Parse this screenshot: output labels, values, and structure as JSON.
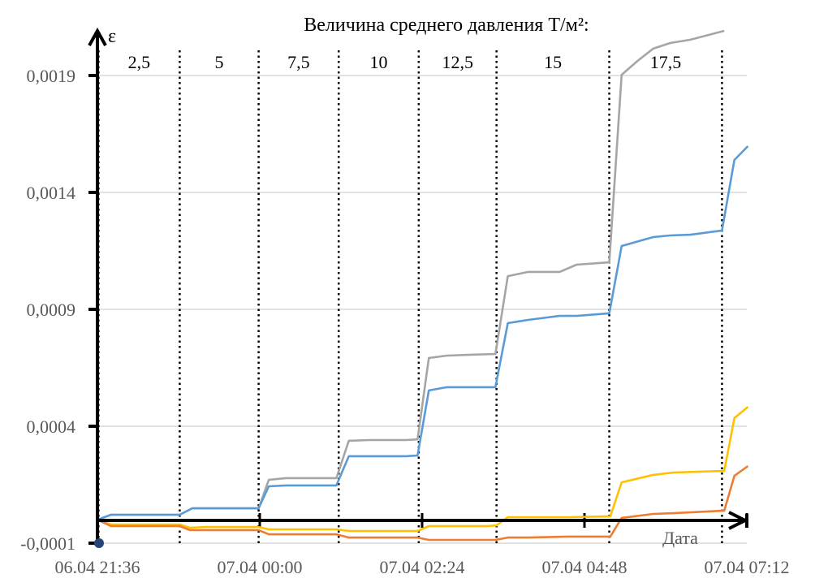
{
  "chart_data": {
    "type": "line",
    "title": "Величина среднего давления Т/м²:",
    "ylabel": "ε",
    "xlabel": "Дата",
    "ylim": [
      -0.0001,
      0.0021
    ],
    "yticks": [
      "-0,0001",
      "0,0004",
      "0,0009",
      "0,0014",
      "0,0019"
    ],
    "ytick_values": [
      -0.0001,
      0.0004,
      0.0009,
      0.0014,
      0.0019
    ],
    "xticks": [
      "06.04 21:36",
      "07.04 00:00",
      "07.04 02:24",
      "07.04 04:48",
      "07.04 07:12"
    ],
    "grid": true,
    "pressure_stages": [
      {
        "label": "2,5",
        "start": "06.04 21:37",
        "end": "06.04 22:49"
      },
      {
        "label": "5",
        "start": "06.04 22:49",
        "end": "06.04 23:59"
      },
      {
        "label": "7,5",
        "start": "06.04 23:59",
        "end": "07.04 01:10"
      },
      {
        "label": "10",
        "start": "07.04 01:10",
        "end": "07.04 02:21"
      },
      {
        "label": "12,5",
        "start": "07.04 02:21",
        "end": "07.04 03:30"
      },
      {
        "label": "15",
        "start": "07.04 03:30",
        "end": "07.04 05:10"
      },
      {
        "label": "17,5",
        "start": "07.04 05:10",
        "end": "07.04 06:50"
      }
    ],
    "series": [
      {
        "color": "#a5a5a5",
        "points": [
          [
            "06.04 21:36",
            0
          ],
          [
            "06.04 21:48",
            2.15e-05
          ],
          [
            "06.04 22:49",
            2.15e-05
          ],
          [
            "06.04 23:00",
            4.9e-05
          ],
          [
            "06.04 23:59",
            4.9e-05
          ],
          [
            "07.04 00:08",
            0.000171
          ],
          [
            "07.04 00:23",
            0.000178
          ],
          [
            "07.04 01:08",
            0.000178
          ],
          [
            "07.04 01:19",
            0.000338
          ],
          [
            "07.04 01:37",
            0.000341
          ],
          [
            "07.04 02:10",
            0.000341
          ],
          [
            "07.04 02:20",
            0.000344
          ],
          [
            "07.04 02:30",
            0.000692
          ],
          [
            "07.04 02:46",
            0.000702
          ],
          [
            "07.04 03:07",
            0.000706
          ],
          [
            "07.04 03:29",
            0.000709
          ],
          [
            "07.04 03:40",
            0.001042
          ],
          [
            "07.04 03:58",
            0.00106
          ],
          [
            "07.04 04:26",
            0.00106
          ],
          [
            "07.04 04:41",
            0.001091
          ],
          [
            "07.04 05:10",
            0.001101
          ],
          [
            "07.04 05:21",
            0.001903
          ],
          [
            "07.04 05:35",
            0.001962
          ],
          [
            "07.04 05:49",
            0.002015
          ],
          [
            "07.04 06:04",
            0.002039
          ],
          [
            "07.04 06:22",
            0.002053
          ],
          [
            "07.04 06:52",
            0.002091
          ]
        ]
      },
      {
        "color": "#5b9bd5",
        "points": [
          [
            "06.04 21:36",
            0
          ],
          [
            "06.04 21:48",
            2.15e-05
          ],
          [
            "06.04 22:49",
            2.15e-05
          ],
          [
            "06.04 23:00",
            4.9e-05
          ],
          [
            "06.04 23:59",
            4.9e-05
          ],
          [
            "07.04 00:08",
            0.000143
          ],
          [
            "07.04 00:23",
            0.000147
          ],
          [
            "07.04 01:08",
            0.000147
          ],
          [
            "07.04 01:19",
            0.000272
          ],
          [
            "07.04 02:10",
            0.000272
          ],
          [
            "07.04 02:20",
            0.000275
          ],
          [
            "07.04 02:30",
            0.000553
          ],
          [
            "07.04 02:46",
            0.000567
          ],
          [
            "07.04 03:29",
            0.000567
          ],
          [
            "07.04 03:40",
            0.000841
          ],
          [
            "07.04 03:58",
            0.000855
          ],
          [
            "07.04 04:26",
            0.000872
          ],
          [
            "07.04 04:41",
            0.000872
          ],
          [
            "07.04 05:10",
            0.000883
          ],
          [
            "07.04 05:21",
            0.001171
          ],
          [
            "07.04 05:49",
            0.001209
          ],
          [
            "07.04 06:04",
            0.001216
          ],
          [
            "07.04 06:22",
            0.001219
          ],
          [
            "07.04 06:50",
            0.001237
          ],
          [
            "07.04 07:01",
            0.001539
          ],
          [
            "07.04 07:13",
            0.001598
          ]
        ]
      },
      {
        "color": "#ffc000",
        "points": [
          [
            "06.04 21:36",
            0
          ],
          [
            "06.04 21:48",
            -2e-05
          ],
          [
            "06.04 22:49",
            -2e-05
          ],
          [
            "06.04 22:58",
            -3.4e-05
          ],
          [
            "06.04 23:12",
            -3.1e-05
          ],
          [
            "06.04 23:59",
            -3.1e-05
          ],
          [
            "07.04 00:08",
            -4.1e-05
          ],
          [
            "07.04 01:08",
            -4.1e-05
          ],
          [
            "07.04 01:19",
            -4.8e-05
          ],
          [
            "07.04 02:20",
            -4.8e-05
          ],
          [
            "07.04 02:30",
            -2.7e-05
          ],
          [
            "07.04 03:22",
            -2.7e-05
          ],
          [
            "07.04 03:30",
            -2.4e-05
          ],
          [
            "07.04 03:40",
            1.1e-05
          ],
          [
            "07.04 04:34",
            1.1e-05
          ],
          [
            "07.04 05:11",
            1.5e-05
          ],
          [
            "07.04 05:21",
            0.00016
          ],
          [
            "07.04 05:49",
            0.000192
          ],
          [
            "07.04 06:07",
            0.000202
          ],
          [
            "07.04 06:52",
            0.000209
          ],
          [
            "07.04 07:01",
            0.000435
          ],
          [
            "07.04 07:13",
            0.000483
          ]
        ]
      },
      {
        "color": "#ed7d31",
        "points": [
          [
            "06.04 21:36",
            0
          ],
          [
            "06.04 21:48",
            -2.7e-05
          ],
          [
            "06.04 22:49",
            -2.7e-05
          ],
          [
            "06.04 22:58",
            -4.4e-05
          ],
          [
            "06.04 23:59",
            -4.4e-05
          ],
          [
            "07.04 00:08",
            -6.2e-05
          ],
          [
            "07.04 01:08",
            -6.2e-05
          ],
          [
            "07.04 01:19",
            -7.6e-05
          ],
          [
            "07.04 02:20",
            -7.6e-05
          ],
          [
            "07.04 02:30",
            -8.6e-05
          ],
          [
            "07.04 03:29",
            -8.6e-05
          ],
          [
            "07.04 03:40",
            -7.6e-05
          ],
          [
            "07.04 03:58",
            -7.6e-05
          ],
          [
            "07.04 04:34",
            -7.2e-05
          ],
          [
            "07.04 05:11",
            -7.2e-05
          ],
          [
            "07.04 05:21",
            8e-06
          ],
          [
            "07.04 05:49",
            2.5e-05
          ],
          [
            "07.04 06:07",
            2.8e-05
          ],
          [
            "07.04 06:52",
            3.9e-05
          ],
          [
            "07.04 07:01",
            0.000188
          ],
          [
            "07.04 07:13",
            0.00023
          ]
        ]
      }
    ]
  }
}
